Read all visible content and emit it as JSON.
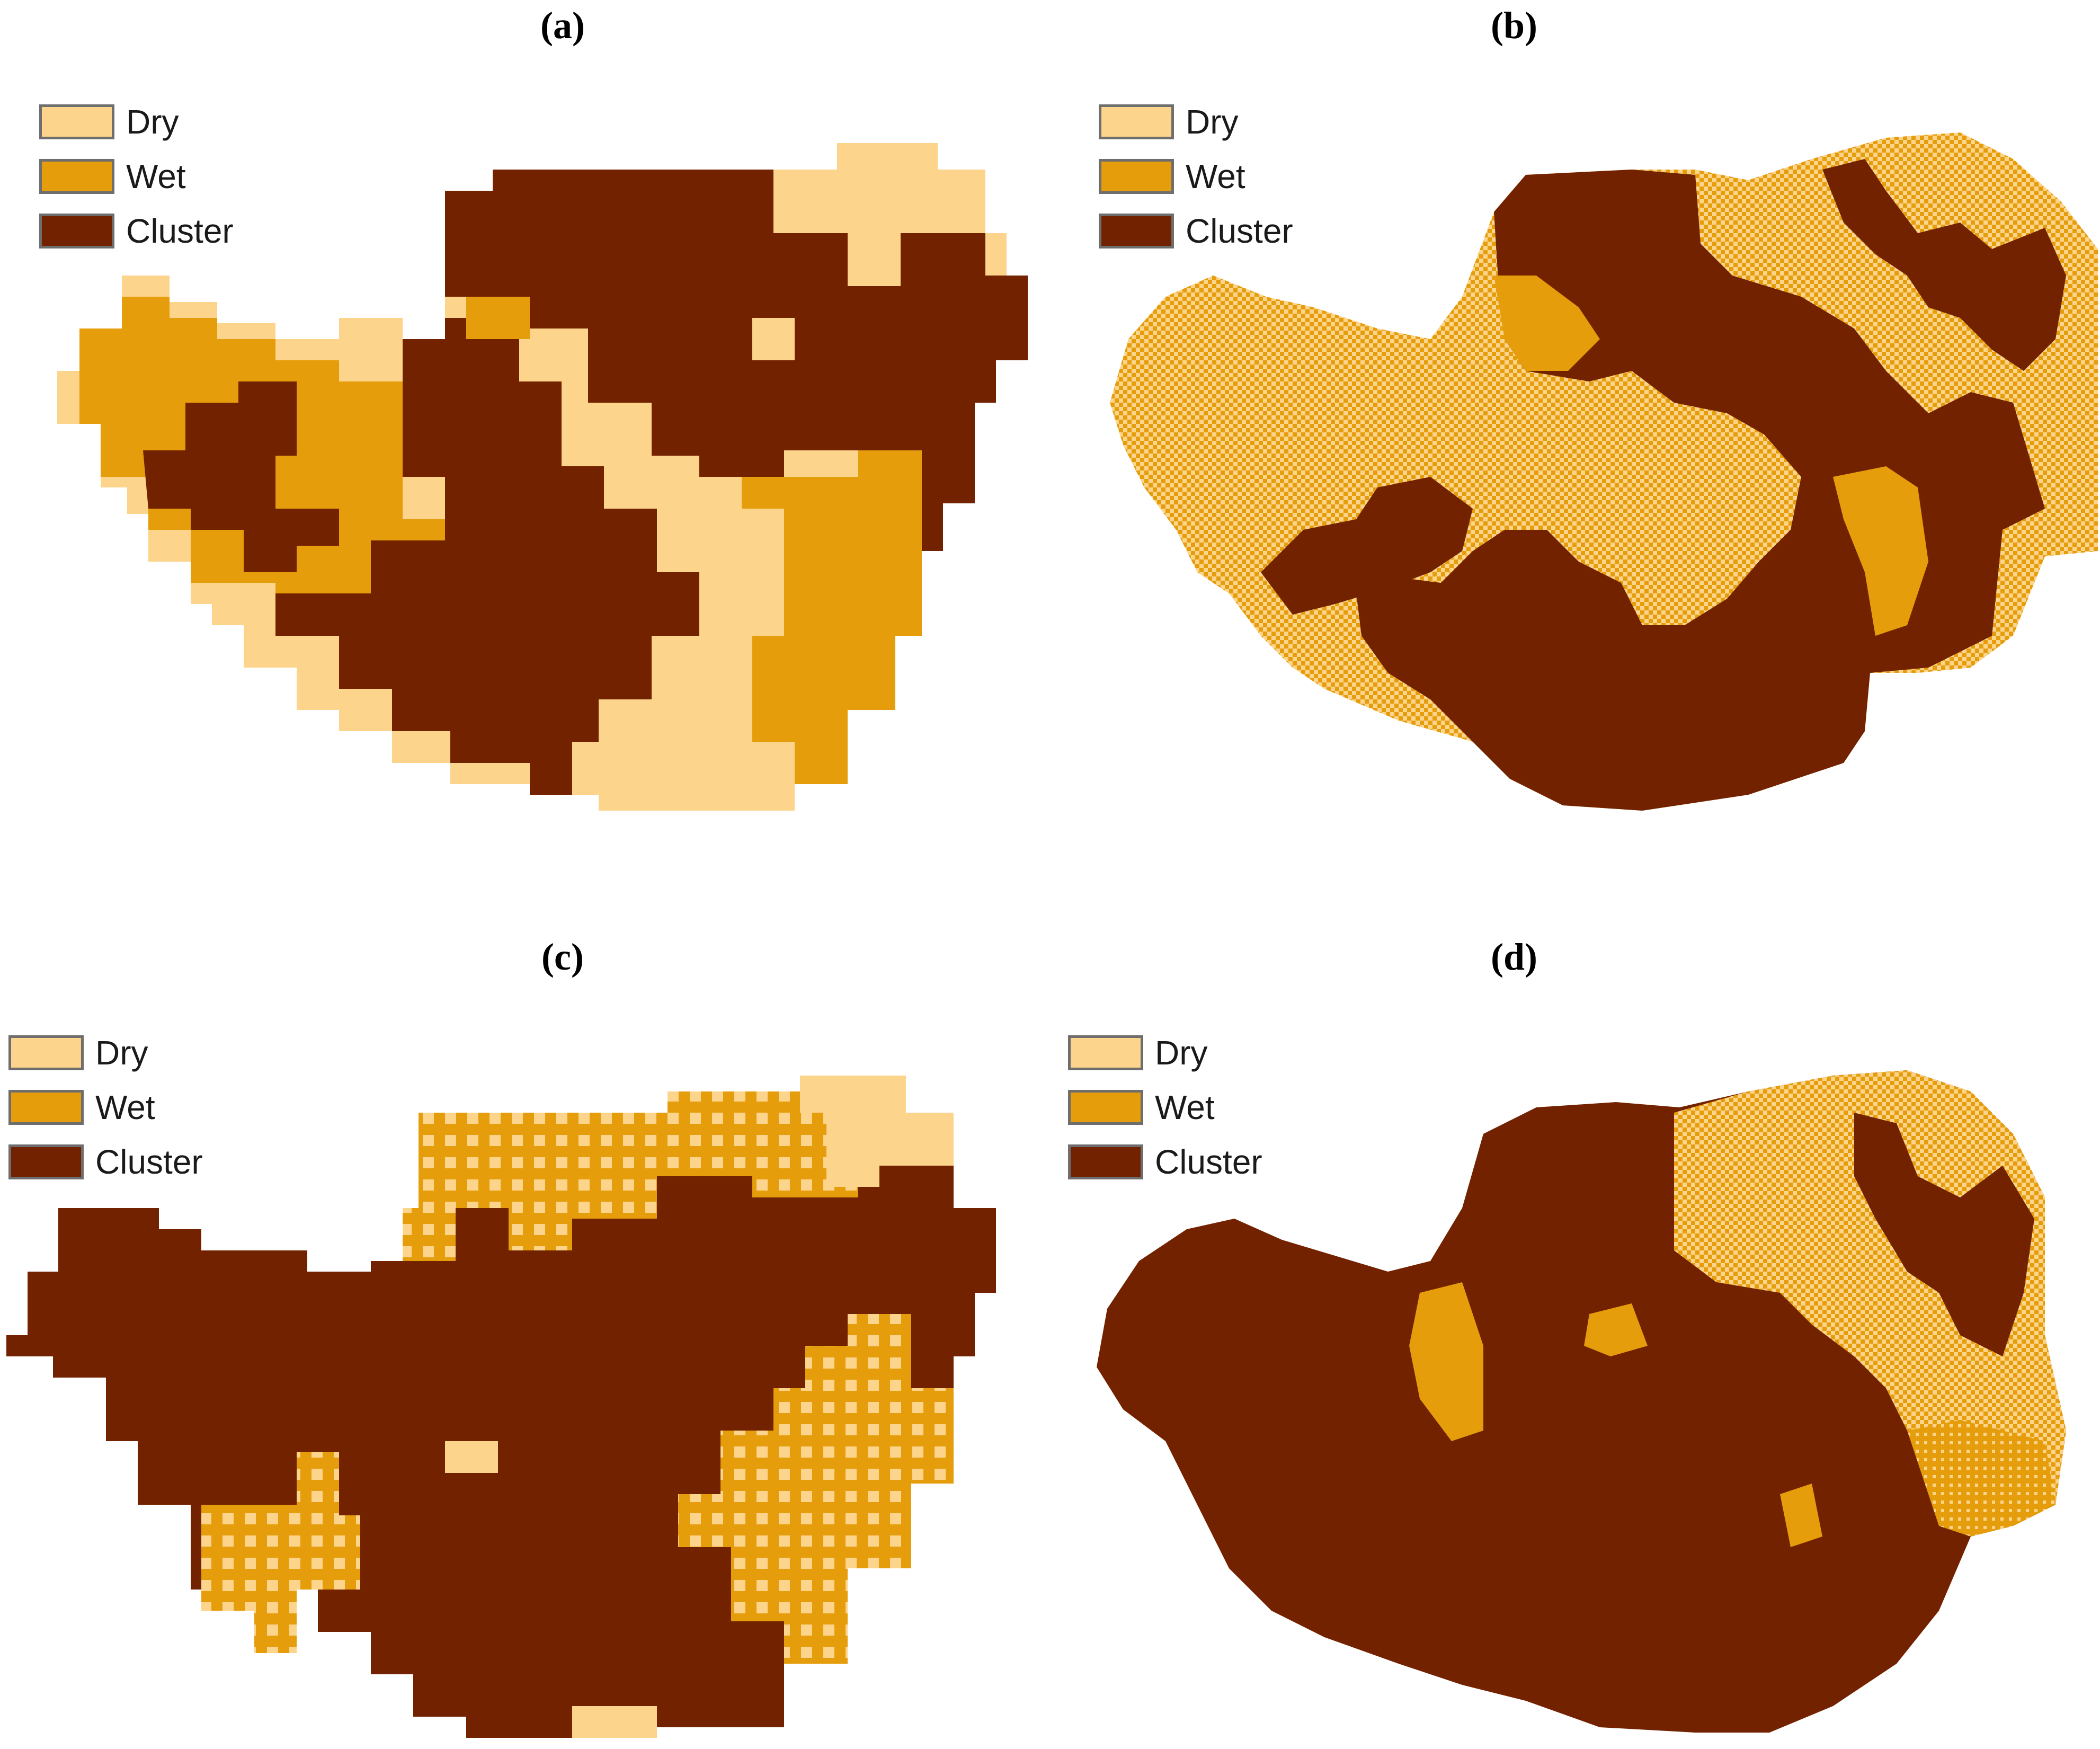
{
  "figure": {
    "panels": [
      {
        "id": "a",
        "title": "(a)"
      },
      {
        "id": "b",
        "title": "(b)"
      },
      {
        "id": "c",
        "title": "(c)"
      },
      {
        "id": "d",
        "title": "(d)"
      }
    ],
    "legend": [
      {
        "key": "dry",
        "label": "Dry",
        "color": "#fdd48b"
      },
      {
        "key": "wet",
        "label": "Wet",
        "color": "#e59d0c"
      },
      {
        "key": "cluster",
        "label": "Cluster",
        "color": "#732200"
      }
    ]
  }
}
